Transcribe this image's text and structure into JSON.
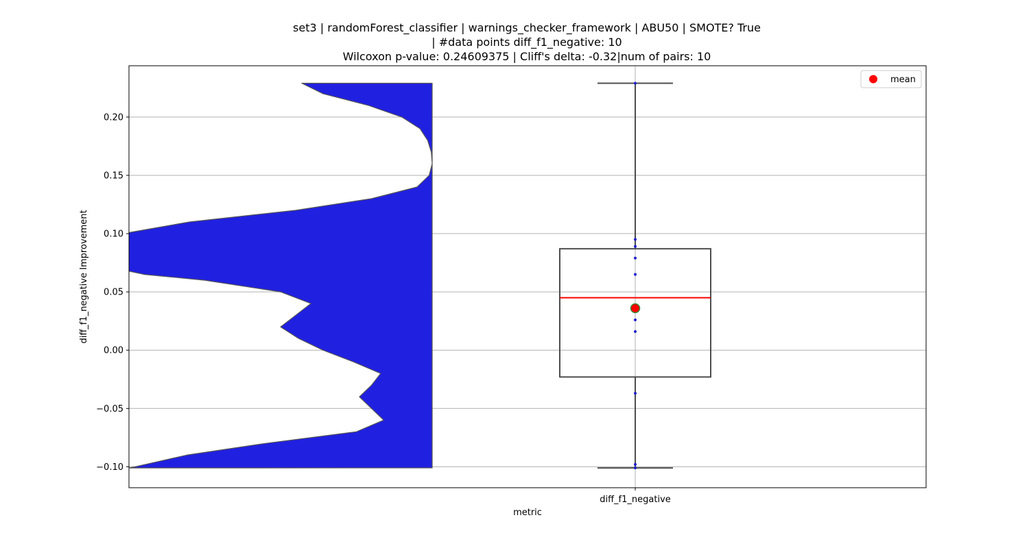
{
  "chart_data": {
    "type": "violin-box",
    "title_lines": [
      "set3 | randomForest_classifier | warnings_checker_framework | ABU50 | SMOTE? True",
      "| #data points diff_f1_negative: 10",
      "Wilcoxon p-value: 0.24609375 | Cliff's delta: -0.32|num of pairs: 10"
    ],
    "xlabel": "metric",
    "ylabel": "diff_f1_negative Improvement",
    "categories": [
      "diff_f1_negative"
    ],
    "ylim": [
      -0.118,
      0.244
    ],
    "yticks": [
      -0.1,
      -0.05,
      0.0,
      0.05,
      0.1,
      0.15,
      0.2
    ],
    "ytick_labels": [
      "−0.10",
      "−0.05",
      "0.00",
      "0.05",
      "0.10",
      "0.15",
      "0.20"
    ],
    "grid": true,
    "legend": {
      "placement": "top-right",
      "entries": [
        {
          "label": "mean",
          "color": "#ff0000"
        }
      ]
    },
    "violin": {
      "color": "#2020e0",
      "edge_color": "#555555",
      "range": [
        -0.101,
        0.229
      ],
      "profile": [
        [
          0.229,
          0.43
        ],
        [
          0.22,
          0.36
        ],
        [
          0.21,
          0.21
        ],
        [
          0.2,
          0.1
        ],
        [
          0.19,
          0.04
        ],
        [
          0.18,
          0.015
        ],
        [
          0.17,
          0.003
        ],
        [
          0.16,
          0.0
        ],
        [
          0.15,
          0.01
        ],
        [
          0.14,
          0.05
        ],
        [
          0.13,
          0.2
        ],
        [
          0.12,
          0.45
        ],
        [
          0.11,
          0.8
        ],
        [
          0.1,
          1.02
        ],
        [
          0.095,
          1.03
        ],
        [
          0.09,
          1.05
        ],
        [
          0.08,
          1.05
        ],
        [
          0.07,
          1.04
        ],
        [
          0.065,
          0.95
        ],
        [
          0.06,
          0.75
        ],
        [
          0.05,
          0.5
        ],
        [
          0.04,
          0.4
        ],
        [
          0.03,
          0.45
        ],
        [
          0.02,
          0.5
        ],
        [
          0.01,
          0.44
        ],
        [
          0.0,
          0.36
        ],
        [
          -0.01,
          0.26
        ],
        [
          -0.02,
          0.17
        ],
        [
          -0.03,
          0.2
        ],
        [
          -0.04,
          0.24
        ],
        [
          -0.05,
          0.2
        ],
        [
          -0.06,
          0.16
        ],
        [
          -0.07,
          0.25
        ],
        [
          -0.08,
          0.55
        ],
        [
          -0.09,
          0.81
        ],
        [
          -0.1,
          0.98
        ],
        [
          -0.101,
          1.0
        ]
      ]
    },
    "box": {
      "whisker_low": -0.101,
      "q1": -0.023,
      "median": 0.045,
      "q3": 0.087,
      "whisker_high": 0.229,
      "mean": 0.036,
      "median_color": "#ff0000",
      "mean_marker_color": "#ff0000",
      "mean_marker_edge": "#3a8a3a"
    },
    "points": [
      0.229,
      0.095,
      0.089,
      0.079,
      0.065,
      0.026,
      0.016,
      -0.037,
      -0.098,
      -0.101
    ]
  }
}
